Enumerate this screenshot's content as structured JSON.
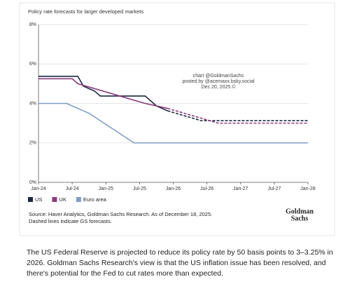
{
  "chart_data": {
    "type": "line",
    "title": "Policy rate forecasts for larger developed markets",
    "xlim": [
      "2024-01",
      "2028-01"
    ],
    "xticks": [
      {
        "value": "2024-01",
        "label": "Jan-24"
      },
      {
        "value": "2024-07",
        "label": "Jul-24"
      },
      {
        "value": "2025-01",
        "label": "Jan-25"
      },
      {
        "value": "2025-07",
        "label": "Jul-25"
      },
      {
        "value": "2026-01",
        "label": "Jan-26"
      },
      {
        "value": "2026-07",
        "label": "Jul-26"
      },
      {
        "value": "2027-01",
        "label": "Jan-27"
      },
      {
        "value": "2027-07",
        "label": "Jul-27"
      },
      {
        "value": "2028-01",
        "label": "Jan-28"
      }
    ],
    "ylim": [
      0,
      8
    ],
    "yticks": [
      {
        "value": 0,
        "label": "0%"
      },
      {
        "value": 2,
        "label": "2%"
      },
      {
        "value": 4,
        "label": "4%"
      },
      {
        "value": 6,
        "label": "6%"
      },
      {
        "value": 8,
        "label": "8%"
      }
    ],
    "grid": true,
    "legend": "bottom-left",
    "series": [
      {
        "name": "US",
        "color": "#1c2846",
        "dashed_from": "2025-12",
        "x": [
          "2024-01",
          "2024-08",
          "2024-09",
          "2024-11",
          "2024-12",
          "2025-08",
          "2025-09",
          "2025-10",
          "2025-12",
          "2026-03",
          "2026-06",
          "2028-01"
        ],
        "values": [
          5.375,
          5.375,
          4.875,
          4.625,
          4.375,
          4.375,
          4.125,
          3.875,
          3.625,
          3.375,
          3.125,
          3.125
        ]
      },
      {
        "name": "UK",
        "color": "#8a3a7c",
        "dashed_from": "2025-12",
        "x": [
          "2024-01",
          "2024-07",
          "2024-08",
          "2025-02",
          "2025-05",
          "2025-08",
          "2025-12",
          "2026-09",
          "2028-01"
        ],
        "values": [
          5.25,
          5.25,
          5.0,
          4.5,
          4.25,
          4.0,
          3.75,
          3.0,
          3.0
        ]
      },
      {
        "name": "Euro area",
        "color": "#7f9cc9",
        "x": [
          "2024-01",
          "2024-06",
          "2024-10",
          "2025-06",
          "2028-01"
        ],
        "values": [
          4.0,
          4.0,
          3.5,
          2.0,
          2.0
        ]
      }
    ],
    "annotations": [
      "chart @GoldmanSachs",
      "posted by @acemaxx.bsky.social",
      "Dec 20, 2025 ©"
    ]
  },
  "source_notes": [
    "Source: Haver Analytics, Goldman Sachs Research. As of December 18, 2025.",
    "Dashed lines indicate GS forecasts."
  ],
  "logo": [
    "Goldman",
    "Sachs"
  ],
  "caption": "The US Federal Reserve is projected to reduce its policy rate by 50 basis points to 3–3.25% in 2026. Goldman Sachs Research's view is that the US inflation issue has been resolved, and there's potential for the Fed to cut rates more than expected."
}
